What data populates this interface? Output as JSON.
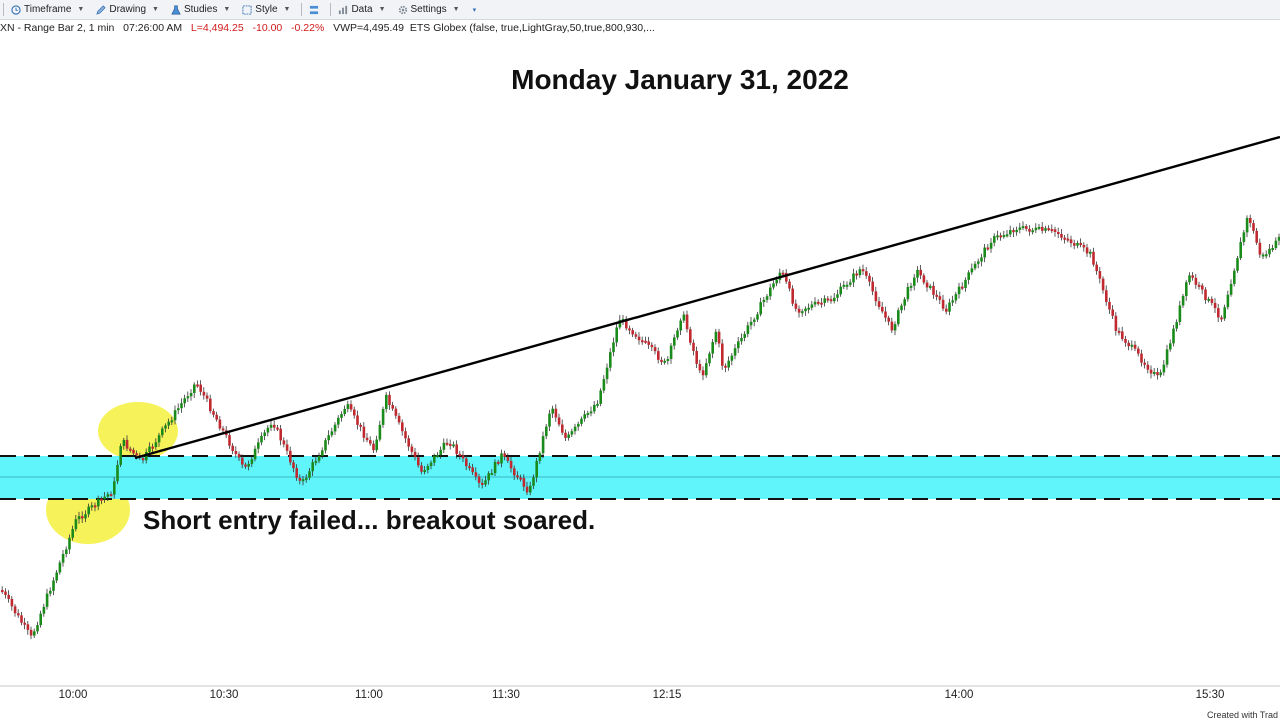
{
  "toolbar": {
    "items": [
      {
        "label": "Timeframe",
        "icon": "clock-icon"
      },
      {
        "label": "Drawing",
        "icon": "pencil-icon"
      },
      {
        "label": "Studies",
        "icon": "flask-icon"
      },
      {
        "label": "Style",
        "icon": "style-icon"
      },
      {
        "label": "",
        "icon": "layers-icon"
      },
      {
        "label": "Data",
        "icon": "data-icon"
      },
      {
        "label": "Settings",
        "icon": "gear-icon"
      }
    ]
  },
  "info": {
    "instrument": "XN - Range Bar 2, 1 min",
    "time": "07:26:00 AM",
    "last": "L=4,494.25",
    "change": "-10.00",
    "change_pct": "-0.22%",
    "vwap": "VWP=4,495.49",
    "vwap_params": "ETS Globex (false,  true,LightGray,50,true,800,930,..."
  },
  "title": "Monday January 31, 2022",
  "annotation": "Short entry failed... breakout soared.",
  "footer": "Created with Trad",
  "xaxis": {
    "ticks": [
      "10:00",
      "10:30",
      "11:00",
      "11:30",
      "12:15",
      "14:00",
      "15:30"
    ]
  },
  "colors": {
    "up_bar": "#1a8a1a",
    "down_bar": "#c0292f",
    "zone": "#5ff5fa",
    "highlight": "#f5f03c",
    "trendline": "#000000"
  }
}
